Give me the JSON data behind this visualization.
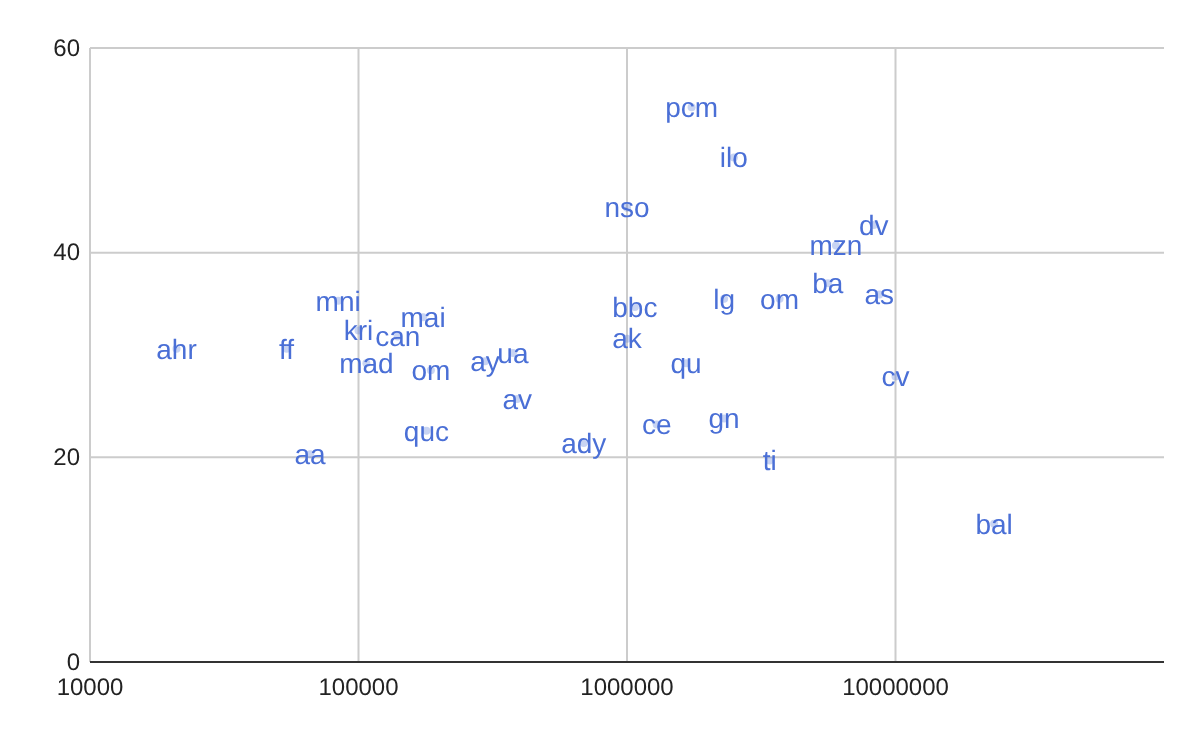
{
  "chart_data": {
    "type": "scatter",
    "log": "x",
    "grid": true,
    "xlim": [
      10000,
      100000000
    ],
    "xticks": [
      10000,
      100000,
      1000000,
      10000000
    ],
    "ylim": [
      0,
      60
    ],
    "yticks": [
      0,
      20,
      40,
      60
    ],
    "series": [
      {
        "color": "#4a6fd6",
        "x": [
          21000,
          54000,
          84000,
          100000,
          140000,
          174000,
          107000,
          186000,
          296000,
          376000,
          390000,
          179000,
          66000,
          1740000,
          2500000,
          1000000,
          8300000,
          6000000,
          5600000,
          8700000,
          2300000,
          3700000,
          1070000,
          1000000,
          1660000,
          10000000,
          690000,
          1290000,
          2300000,
          3400000,
          23300000
        ],
        "values": [
          30.6,
          30.6,
          35.3,
          32.4,
          31.8,
          33.7,
          29.2,
          28.5,
          29.4,
          30.2,
          25.7,
          22.6,
          20.3,
          54.2,
          49.3,
          44.4,
          42.7,
          40.7,
          37,
          35.9,
          35.5,
          35.5,
          34.7,
          31.6,
          29.2,
          27.9,
          21.4,
          23.2,
          23.8,
          19.7,
          13.5
        ],
        "value_labels": [
          "ahr",
          "ff",
          "mni",
          "kri",
          "can",
          "mai",
          "mad",
          "om",
          "ay",
          "ua",
          "av",
          "quc",
          "aa",
          "pcm",
          "ilo",
          "nso",
          "dv",
          "mzn",
          "ba",
          "as",
          "lg",
          "om",
          "bbc",
          "ak",
          "qu",
          "cv",
          "ady",
          "ce",
          "gn",
          "ti",
          "bal"
        ]
      }
    ]
  }
}
